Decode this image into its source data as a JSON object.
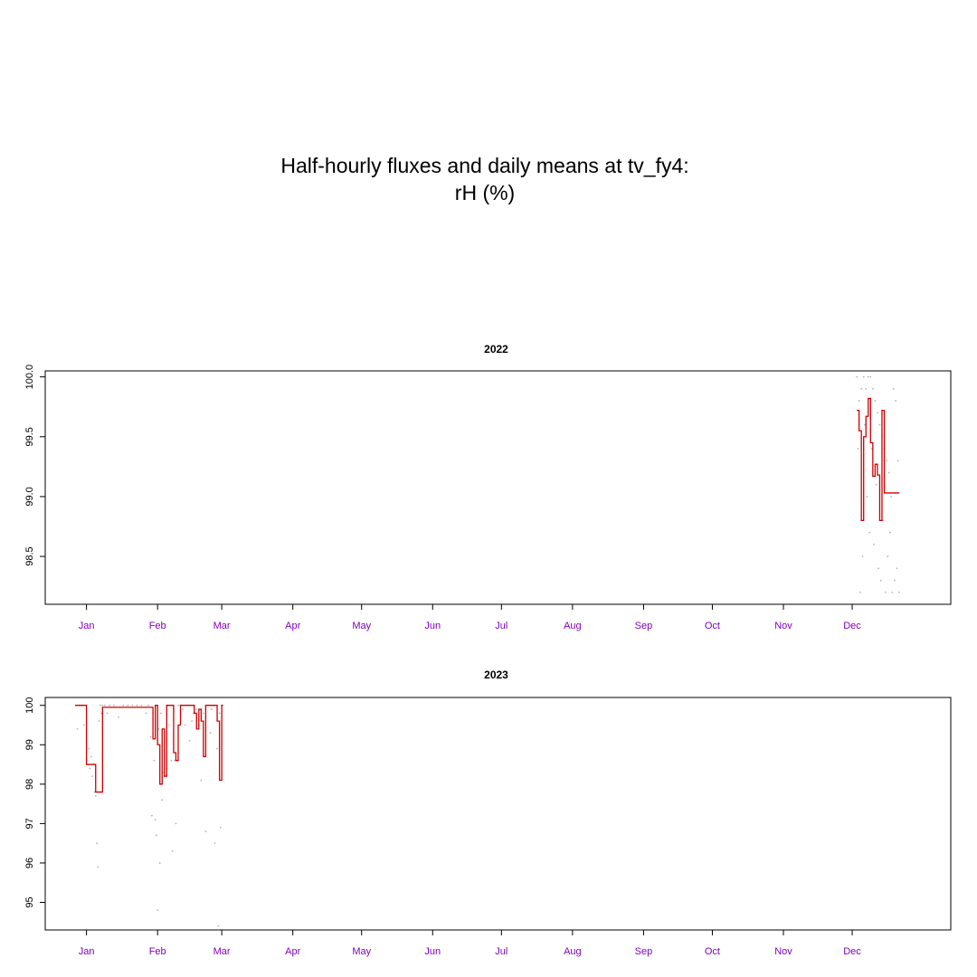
{
  "title_lines": [
    "Half-hourly fluxes and daily means at tv_fy4:",
    "rH (%)"
  ],
  "colors": {
    "points": "#999999",
    "daily_mean": "#cc0000",
    "month_labels": "#8000c0",
    "axes": "#000000"
  },
  "chart_data": [
    {
      "type": "line",
      "title": "2022",
      "xlabel": "",
      "ylabel": "",
      "month_labels": [
        "Jan",
        "Feb",
        "Mar",
        "Apr",
        "May",
        "Jun",
        "Jul",
        "Aug",
        "Sep",
        "Oct",
        "Nov",
        "Dec"
      ],
      "xlim_days": [
        -18,
        377
      ],
      "ylim": [
        98.1,
        100.05
      ],
      "y_ticks": [
        98.5,
        99.0,
        99.5,
        100.0
      ],
      "y_tick_labels": [
        "98.5",
        "99.0",
        "99.5",
        "100.0"
      ],
      "series": [
        {
          "style": "points",
          "x": [
            336,
            336.5,
            337,
            337.5,
            338,
            338.5,
            339,
            339.5,
            340,
            340.5,
            341,
            341.5,
            342,
            342.5,
            343,
            343.5,
            344,
            344.5,
            345,
            345.5,
            346,
            346.5,
            347,
            347.5,
            348,
            348.5,
            349,
            349.5,
            350,
            350.5,
            351,
            351.5,
            352,
            352.5,
            353,
            353.5,
            354,
            354.5
          ],
          "y": [
            100.0,
            99.4,
            99.8,
            98.2,
            99.9,
            98.5,
            100.0,
            99.6,
            99.9,
            99.0,
            100.0,
            98.7,
            100.0,
            99.4,
            99.9,
            98.6,
            99.8,
            99.1,
            99.7,
            98.4,
            99.6,
            98.3,
            99.5,
            98.8,
            99.4,
            98.2,
            99.3,
            98.5,
            99.2,
            98.7,
            99.0,
            98.2,
            99.9,
            98.3,
            99.8,
            98.4,
            99.3,
            98.2
          ]
        },
        {
          "style": "step",
          "x": [
            336,
            337,
            338,
            339,
            340,
            341,
            342,
            343,
            344,
            345,
            346,
            347,
            348,
            349,
            350,
            351,
            352,
            353,
            354
          ],
          "y": [
            99.72,
            99.55,
            98.8,
            99.5,
            99.67,
            99.82,
            99.45,
            99.17,
            99.27,
            99.18,
            98.8,
            99.72,
            99.03,
            99.03,
            99.03,
            99.03,
            99.03,
            99.03,
            99.03
          ]
        }
      ]
    },
    {
      "type": "line",
      "title": "2023",
      "xlabel": "",
      "ylabel": "",
      "month_labels": [
        "Jan",
        "Feb",
        "Mar",
        "Apr",
        "May",
        "Jun",
        "Jul",
        "Aug",
        "Sep",
        "Oct",
        "Nov",
        "Dec"
      ],
      "xlim_days": [
        -18,
        377
      ],
      "ylim": [
        94.3,
        100.2
      ],
      "y_ticks": [
        95,
        96,
        97,
        98,
        99,
        100
      ],
      "y_tick_labels": [
        "95",
        "96",
        "97",
        "98",
        "99",
        "100"
      ],
      "series": [
        {
          "style": "points",
          "x": [
            -4,
            -3,
            -2,
            -1,
            0,
            1,
            1.5,
            2,
            2.5,
            3,
            3.5,
            4,
            4.5,
            5,
            5.5,
            6,
            6.5,
            7,
            8,
            9,
            10,
            12,
            14,
            16,
            18,
            20,
            22,
            24,
            26,
            27,
            28,
            28.5,
            29,
            29.5,
            30,
            30.5,
            31,
            31.5,
            32,
            32.5,
            33,
            33.5,
            34,
            35,
            36,
            37,
            37.5,
            38,
            38.5,
            39,
            40,
            41,
            42,
            43,
            44,
            45,
            46,
            46.5,
            47,
            48,
            49,
            50,
            51,
            52,
            53,
            54,
            54.5,
            55,
            56,
            57,
            57.5,
            58,
            58.5,
            59
          ],
          "y": [
            99.4,
            100,
            100,
            99.5,
            100,
            98.9,
            98.4,
            98.7,
            98.2,
            98.5,
            97.8,
            97.7,
            96.5,
            95.9,
            99.6,
            100,
            99.8,
            100,
            100,
            99.8,
            100,
            100,
            99.7,
            100,
            100,
            100,
            100,
            100,
            99.8,
            100,
            99.2,
            97.2,
            99.8,
            98.6,
            97.1,
            96.7,
            94.8,
            99.4,
            96.0,
            99.8,
            97.6,
            98.3,
            98.2,
            100,
            99.5,
            98.6,
            96.3,
            99.9,
            98.6,
            97.0,
            100,
            100,
            99.9,
            99.5,
            100,
            99.1,
            99.6,
            99.8,
            100,
            99.9,
            99.5,
            98.1,
            99.8,
            96.8,
            100,
            99.3,
            99.9,
            100,
            96.5,
            98.9,
            94.4,
            99.8,
            96.9,
            100
          ]
        },
        {
          "style": "step",
          "x": [
            -5,
            -4,
            -3,
            -2,
            -1,
            0,
            1,
            2,
            3,
            4,
            5,
            6,
            7,
            8,
            9,
            10,
            11,
            12,
            13,
            14,
            15,
            16,
            17,
            18,
            19,
            20,
            21,
            22,
            23,
            24,
            25,
            26,
            27,
            28,
            29,
            30,
            31,
            32,
            33,
            34,
            35,
            36,
            37,
            38,
            39,
            40,
            41,
            42,
            43,
            44,
            45,
            46,
            47,
            48,
            49,
            50,
            51,
            52,
            53,
            54,
            55,
            56,
            57,
            58,
            59
          ],
          "y": [
            100,
            100,
            100,
            100,
            100,
            98.5,
            98.5,
            98.5,
            98.5,
            97.8,
            97.8,
            97.8,
            99.95,
            99.95,
            99.95,
            99.95,
            99.95,
            99.95,
            99.95,
            99.95,
            99.95,
            99.95,
            99.95,
            99.95,
            99.95,
            99.95,
            99.95,
            99.95,
            99.95,
            99.95,
            99.95,
            99.95,
            99.95,
            99.95,
            99.15,
            100,
            99.0,
            98.0,
            99.4,
            98.2,
            100,
            100,
            100,
            98.8,
            98.6,
            99.5,
            100,
            100,
            100,
            100,
            100,
            100,
            99.8,
            99.4,
            99.9,
            99.6,
            98.7,
            100,
            100,
            100,
            100,
            100,
            99.6,
            98.1,
            100
          ]
        }
      ]
    }
  ]
}
